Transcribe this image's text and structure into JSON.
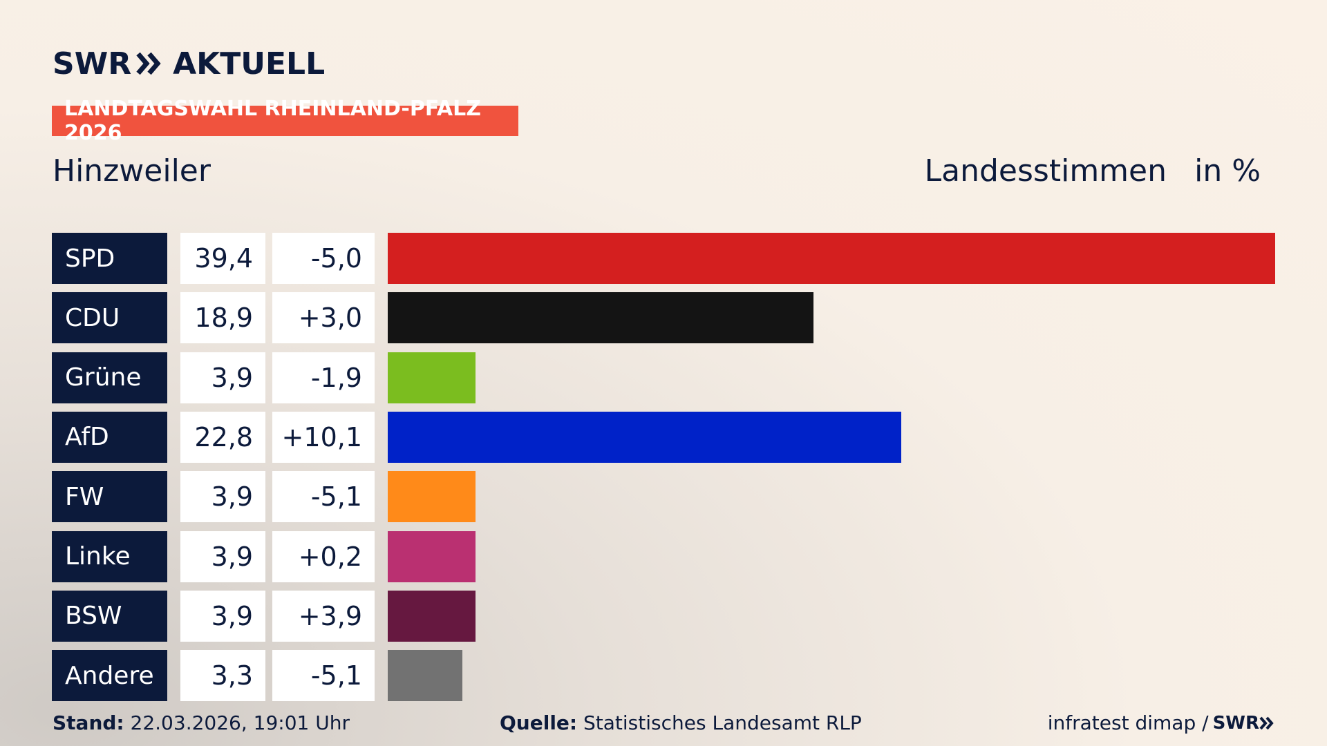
{
  "header": {
    "brand_left": "SWR",
    "brand_right": "AKTUELL",
    "election": "LANDTAGSWAHL RHEINLAND-PFALZ 2026",
    "region": "Hinzweiler",
    "vote_type": "Landesstimmen",
    "unit": "in %"
  },
  "chart_data": {
    "type": "bar",
    "orientation": "horizontal",
    "categories": [
      "SPD",
      "CDU",
      "Grüne",
      "AfD",
      "FW",
      "Linke",
      "BSW",
      "Andere"
    ],
    "values": [
      39.4,
      18.9,
      3.9,
      22.8,
      3.9,
      3.9,
      3.9,
      3.3
    ],
    "value_labels": [
      "39,4",
      "18,9",
      "3,9",
      "22,8",
      "3,9",
      "3,9",
      "3,9",
      "3,3"
    ],
    "diff_labels": [
      "-5,0",
      "+3,0",
      "-1,9",
      "+10,1",
      "-5,1",
      "+0,2",
      "+3,9",
      "-5,1"
    ],
    "colors": [
      "#d41f1f",
      "#141414",
      "#7bbd1f",
      "#0022c8",
      "#ff8a19",
      "#ba3071",
      "#661840",
      "#727272"
    ],
    "xlim": [
      0,
      39.4
    ]
  },
  "footer": {
    "stand_label": "Stand:",
    "stand_value": "22.03.2026, 19:01 Uhr",
    "source_label": "Quelle:",
    "source_value": "Statistisches Landesamt RLP",
    "credit": "infratest dimap /",
    "credit_brand": "SWR"
  }
}
